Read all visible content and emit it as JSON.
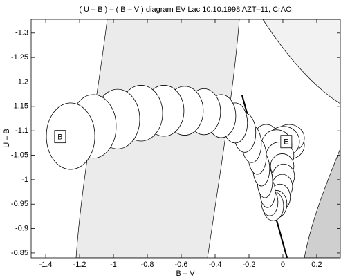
{
  "chart_data": {
    "type": "ellipse",
    "title": "( U – B ) – ( B – V )  diagram EV Lac  10.10.1998  AZT–11, CrAO",
    "x_label": "B – V",
    "y_label": "U – B",
    "x": [
      -1.253,
      -1.119,
      -0.976,
      -0.837,
      -0.702,
      -0.58,
      -0.466,
      -0.364,
      -0.282,
      -0.225,
      -0.184,
      -0.151,
      -0.127,
      -0.106,
      -0.09,
      -0.078,
      -0.057,
      -0.037,
      -0.017,
      -0.004,
      0.004,
      -0.004,
      -0.017,
      -0.037,
      0.004,
      0.037,
      0.045,
      -0.098
    ],
    "values": [
      -1.089,
      -1.109,
      -1.124,
      -1.136,
      -1.141,
      -1.141,
      -1.139,
      -1.13,
      -1.116,
      -1.096,
      -1.073,
      -1.048,
      -1.022,
      -0.997,
      -0.974,
      -0.954,
      -0.946,
      -0.95,
      -0.964,
      -0.986,
      -1.007,
      -1.028,
      -1.049,
      -1.071,
      -1.078,
      -1.085,
      -1.071,
      -1.085
    ],
    "x_err": [
      0.143,
      0.135,
      0.131,
      0.127,
      0.118,
      0.11,
      0.098,
      0.086,
      0.073,
      0.065,
      0.057,
      0.053,
      0.049,
      0.045,
      0.045,
      0.049,
      0.061,
      0.061,
      0.061,
      0.061,
      0.065,
      0.069,
      0.082,
      0.09,
      0.094,
      0.09,
      0.082,
      0.073
    ],
    "y_err": [
      0.068,
      0.065,
      0.061,
      0.057,
      0.052,
      0.05,
      0.047,
      0.044,
      0.041,
      0.04,
      0.038,
      0.037,
      0.035,
      0.034,
      0.031,
      0.028,
      0.03,
      0.028,
      0.027,
      0.025,
      0.025,
      0.025,
      0.028,
      0.031,
      0.031,
      0.028,
      0.028,
      0.028
    ],
    "annotations": [
      {
        "text": "B",
        "x": -1.315,
        "y": -1.088
      },
      {
        "text": "E",
        "x": 0.02,
        "y": -1.078
      }
    ],
    "xlim": [
      -1.486,
      0.339
    ],
    "ylim": [
      -1.328,
      -0.84
    ],
    "y_inverted": true,
    "xticks": [
      -1.4,
      -1.2,
      -1,
      -0.8,
      -0.6,
      -0.4,
      -0.2,
      0,
      0.2
    ],
    "yticks": [
      -1.3,
      -1.25,
      -1.2,
      -1.15,
      -1.1,
      -1.05,
      -1,
      -0.95,
      -0.9,
      -0.85
    ]
  }
}
